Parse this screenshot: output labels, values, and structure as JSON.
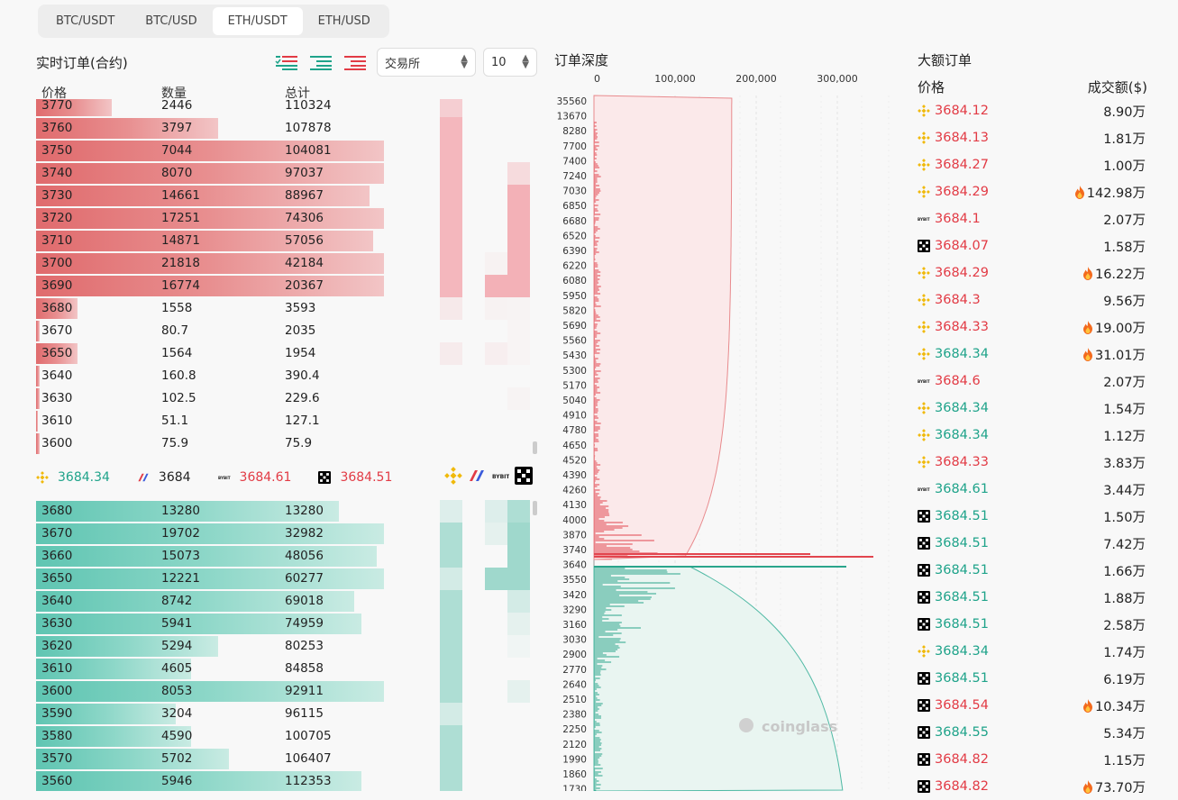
{
  "tabs": [
    {
      "label": "BTC/USDT",
      "active": false
    },
    {
      "label": "BTC/USD",
      "active": false
    },
    {
      "label": "ETH/USDT",
      "active": true
    },
    {
      "label": "ETH/USD",
      "active": false
    }
  ],
  "orderbook": {
    "title": "实时订单(合约)",
    "exchange_select": "交易所",
    "depth_select": "10",
    "headers": {
      "price": "价格",
      "qty": "数量",
      "total": "总计"
    },
    "asks": [
      {
        "price": "3770",
        "qty": "2446",
        "total": "110324",
        "fill": 0.2
      },
      {
        "price": "3760",
        "qty": "3797",
        "total": "107878",
        "fill": 0.48
      },
      {
        "price": "3750",
        "qty": "7044",
        "total": "104081",
        "fill": 0.92
      },
      {
        "price": "3740",
        "qty": "8070",
        "total": "97037",
        "fill": 0.92
      },
      {
        "price": "3730",
        "qty": "14661",
        "total": "88967",
        "fill": 0.88
      },
      {
        "price": "3720",
        "qty": "17251",
        "total": "74306",
        "fill": 0.92
      },
      {
        "price": "3710",
        "qty": "14871",
        "total": "57056",
        "fill": 0.89
      },
      {
        "price": "3700",
        "qty": "21818",
        "total": "42184",
        "fill": 0.92
      },
      {
        "price": "3690",
        "qty": "16774",
        "total": "20367",
        "fill": 0.92
      },
      {
        "price": "3680",
        "qty": "1558",
        "total": "3593",
        "fill": 0.11
      },
      {
        "price": "3670",
        "qty": "80.7",
        "total": "2035",
        "fill": 0.01
      },
      {
        "price": "3650",
        "qty": "1564",
        "total": "1954",
        "fill": 0.11
      },
      {
        "price": "3640",
        "qty": "160.8",
        "total": "390.4",
        "fill": 0.01
      },
      {
        "price": "3630",
        "qty": "102.5",
        "total": "229.6",
        "fill": 0.01
      },
      {
        "price": "3610",
        "qty": "51.1",
        "total": "127.1",
        "fill": 0.0
      },
      {
        "price": "3600",
        "qty": "75.9",
        "total": "75.9",
        "fill": 0.01
      }
    ],
    "mid": [
      {
        "exchange": "binance",
        "price": "3684.34",
        "color": "green"
      },
      {
        "exchange": "bitmex",
        "price": "3684",
        "color": "dark"
      },
      {
        "exchange": "bybit",
        "price": "3684.61",
        "color": "red"
      },
      {
        "exchange": "okx",
        "price": "3684.51",
        "color": "red"
      }
    ],
    "bids": [
      {
        "price": "3680",
        "qty": "13280",
        "total": "13280",
        "fill": 0.8
      },
      {
        "price": "3670",
        "qty": "19702",
        "total": "32982",
        "fill": 0.92
      },
      {
        "price": "3660",
        "qty": "15073",
        "total": "48056",
        "fill": 0.9
      },
      {
        "price": "3650",
        "qty": "12221",
        "total": "60277",
        "fill": 0.92
      },
      {
        "price": "3640",
        "qty": "8742",
        "total": "69018",
        "fill": 0.84
      },
      {
        "price": "3630",
        "qty": "5941",
        "total": "74959",
        "fill": 0.86
      },
      {
        "price": "3620",
        "qty": "5294",
        "total": "80253",
        "fill": 0.48
      },
      {
        "price": "3610",
        "qty": "4605",
        "total": "84858",
        "fill": 0.41
      },
      {
        "price": "3600",
        "qty": "8053",
        "total": "92911",
        "fill": 0.92
      },
      {
        "price": "3590",
        "qty": "3204",
        "total": "96115",
        "fill": 0.37
      },
      {
        "price": "3580",
        "qty": "4590",
        "total": "100705",
        "fill": 0.41
      },
      {
        "price": "3570",
        "qty": "5702",
        "total": "106407",
        "fill": 0.51
      },
      {
        "price": "3560",
        "qty": "5946",
        "total": "112353",
        "fill": 0.86
      }
    ]
  },
  "depth": {
    "title": "订单深度",
    "x_ticks": [
      "0",
      "100,000",
      "200,000",
      "300,000"
    ],
    "y_ticks": [
      "35560",
      "13670",
      "8280",
      "7700",
      "7400",
      "7240",
      "7030",
      "6850",
      "6680",
      "6520",
      "6390",
      "6220",
      "6080",
      "5950",
      "5820",
      "5690",
      "5560",
      "5430",
      "5300",
      "5170",
      "5040",
      "4910",
      "4780",
      "4650",
      "4520",
      "4390",
      "4260",
      "4130",
      "4000",
      "3870",
      "3740",
      "3640",
      "3550",
      "3420",
      "3290",
      "3160",
      "3030",
      "2900",
      "2770",
      "2640",
      "2510",
      "2380",
      "2250",
      "2120",
      "1990",
      "1860",
      "1730"
    ],
    "watermark": "coinglass"
  },
  "large_orders": {
    "title": "大额订单",
    "h_price": "价格",
    "h_amount": "成交额($)",
    "rows": [
      {
        "ex": "binance",
        "price": "3684.12",
        "color": "red",
        "amount": "8.90万",
        "hot": false
      },
      {
        "ex": "binance",
        "price": "3684.13",
        "color": "red",
        "amount": "1.81万",
        "hot": false
      },
      {
        "ex": "binance",
        "price": "3684.27",
        "color": "red",
        "amount": "1.00万",
        "hot": false
      },
      {
        "ex": "binance",
        "price": "3684.29",
        "color": "red",
        "amount": "142.98万",
        "hot": true
      },
      {
        "ex": "bybit",
        "price": "3684.1",
        "color": "red",
        "amount": "2.07万",
        "hot": false
      },
      {
        "ex": "okx",
        "price": "3684.07",
        "color": "red",
        "amount": "1.58万",
        "hot": false
      },
      {
        "ex": "binance",
        "price": "3684.29",
        "color": "red",
        "amount": "16.22万",
        "hot": true
      },
      {
        "ex": "binance",
        "price": "3684.3",
        "color": "red",
        "amount": "9.56万",
        "hot": false
      },
      {
        "ex": "binance",
        "price": "3684.33",
        "color": "red",
        "amount": "19.00万",
        "hot": true
      },
      {
        "ex": "binance",
        "price": "3684.34",
        "color": "green",
        "amount": "31.01万",
        "hot": true
      },
      {
        "ex": "bybit",
        "price": "3684.6",
        "color": "red",
        "amount": "2.07万",
        "hot": false
      },
      {
        "ex": "binance",
        "price": "3684.34",
        "color": "green",
        "amount": "1.54万",
        "hot": false
      },
      {
        "ex": "binance",
        "price": "3684.34",
        "color": "green",
        "amount": "1.12万",
        "hot": false
      },
      {
        "ex": "binance",
        "price": "3684.33",
        "color": "red",
        "amount": "3.83万",
        "hot": false
      },
      {
        "ex": "bybit",
        "price": "3684.61",
        "color": "green",
        "amount": "3.44万",
        "hot": false
      },
      {
        "ex": "okx",
        "price": "3684.51",
        "color": "green",
        "amount": "1.50万",
        "hot": false
      },
      {
        "ex": "okx",
        "price": "3684.51",
        "color": "green",
        "amount": "7.42万",
        "hot": false
      },
      {
        "ex": "okx",
        "price": "3684.51",
        "color": "green",
        "amount": "1.66万",
        "hot": false
      },
      {
        "ex": "okx",
        "price": "3684.51",
        "color": "green",
        "amount": "1.88万",
        "hot": false
      },
      {
        "ex": "okx",
        "price": "3684.51",
        "color": "green",
        "amount": "2.58万",
        "hot": false
      },
      {
        "ex": "binance",
        "price": "3684.34",
        "color": "green",
        "amount": "1.74万",
        "hot": false
      },
      {
        "ex": "okx",
        "price": "3684.51",
        "color": "green",
        "amount": "6.19万",
        "hot": false
      },
      {
        "ex": "okx",
        "price": "3684.54",
        "color": "red",
        "amount": "10.34万",
        "hot": true
      },
      {
        "ex": "okx",
        "price": "3684.55",
        "color": "green",
        "amount": "5.34万",
        "hot": false
      },
      {
        "ex": "okx",
        "price": "3684.82",
        "color": "red",
        "amount": "1.15万",
        "hot": false
      },
      {
        "ex": "okx",
        "price": "3684.82",
        "color": "red",
        "amount": "73.70万",
        "hot": true
      }
    ]
  }
}
